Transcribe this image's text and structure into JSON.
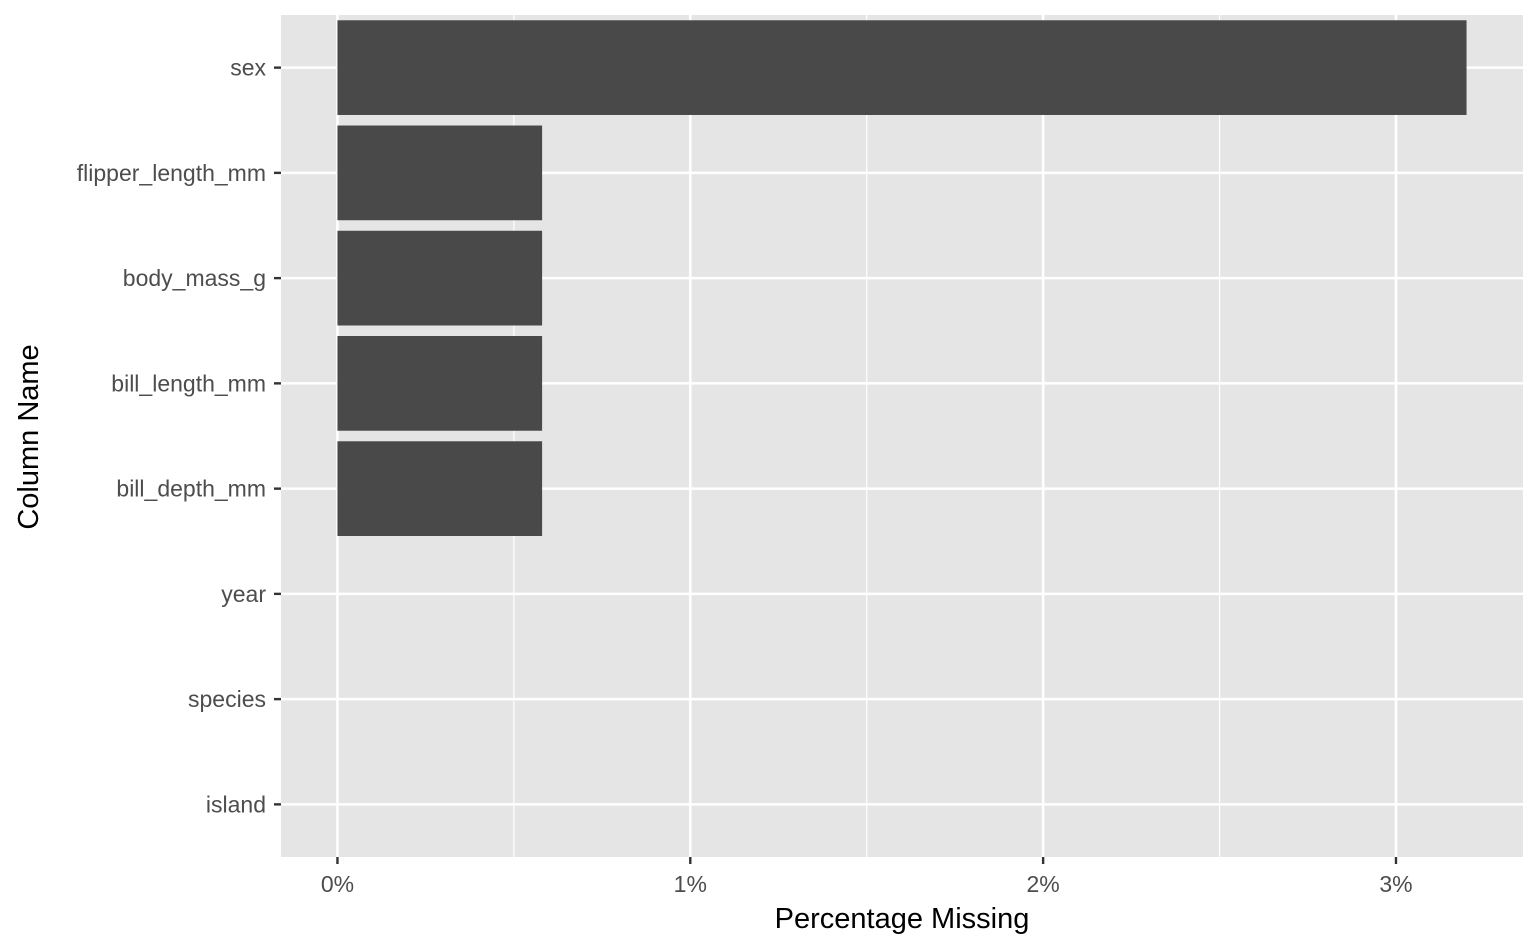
{
  "chart_data": {
    "type": "bar",
    "orientation": "horizontal",
    "title": "",
    "xlabel": "Percentage Missing",
    "ylabel": "Column Name",
    "categories": [
      "sex",
      "flipper_length_mm",
      "body_mass_g",
      "bill_length_mm",
      "bill_depth_mm",
      "year",
      "species",
      "island"
    ],
    "values": [
      3.2,
      0.58,
      0.58,
      0.58,
      0.58,
      0,
      0,
      0
    ],
    "value_unit": "%",
    "x_ticks": [
      0,
      1,
      2,
      3
    ],
    "x_tick_labels": [
      "0%",
      "1%",
      "2%",
      "3%"
    ],
    "xlim": [
      -0.16,
      3.36
    ],
    "grid": true,
    "legend": "none",
    "colors": {
      "panel_background": "#e5e5e5",
      "gridline": "#ffffff",
      "bar_fill": "#494949",
      "tick_text": "#4d4d4d",
      "axis_title": "#000000",
      "tick_mark": "#333333"
    }
  }
}
